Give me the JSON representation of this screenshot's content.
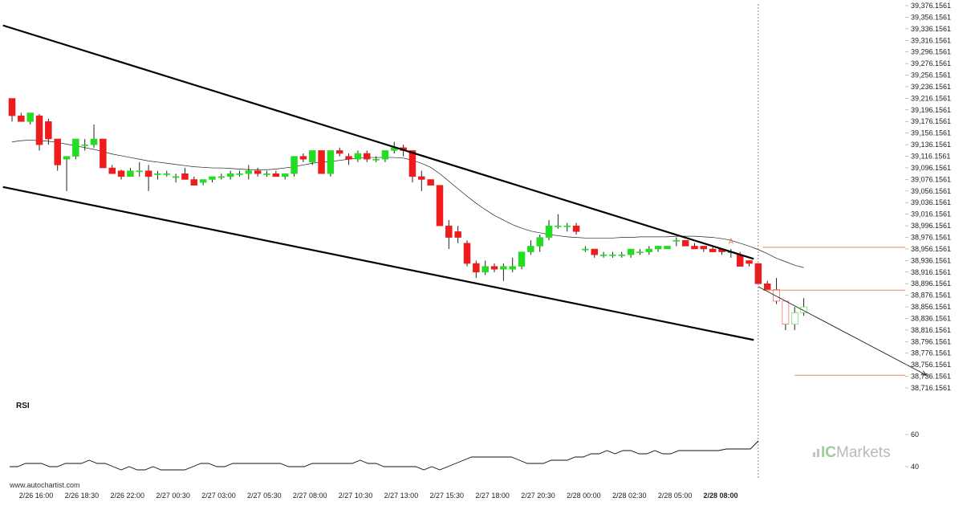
{
  "watermark": "www.autochartist.com",
  "brand": {
    "prefix": "IC",
    "name": "Markets"
  },
  "chart_data": {
    "type": "candlestick",
    "price_axis": {
      "ylim": [
        38716.1561,
        39376.1561
      ],
      "ticks": [
        "39,376.1561",
        "39,356.1561",
        "39,336.1561",
        "39,316.1561",
        "39,296.1561",
        "39,276.1561",
        "39,256.1561",
        "39,236.1561",
        "39,216.1561",
        "39,196.1561",
        "39,176.1561",
        "39,156.1561",
        "39,136.1561",
        "39,116.1561",
        "39,096.1561",
        "39,076.1561",
        "39,056.1561",
        "39,036.1561",
        "39,016.1561",
        "38,996.1561",
        "38,976.1561",
        "38,956.1561",
        "38,936.1561",
        "38,916.1561",
        "38,896.1561",
        "38,876.1561",
        "38,856.1561",
        "38,836.1561",
        "38,816.1561",
        "38,796.1561",
        "38,776.1561",
        "38,756.1561",
        "38,736.1561",
        "38,716.1561"
      ]
    },
    "x_axis": {
      "ticks": [
        "2/26 16:00",
        "2/26 18:30",
        "2/26 22:00",
        "2/27 00:30",
        "2/27 03:00",
        "2/27 05:30",
        "2/27 08:00",
        "2/27 10:30",
        "2/27 13:00",
        "2/27 15:30",
        "2/27 18:00",
        "2/27 20:30",
        "2/28 00:00",
        "2/28 02:30",
        "2/28 05:00",
        "2/28 08:00"
      ],
      "highlighted": "2/28 08:00"
    },
    "candles": [
      [
        39216,
        39216,
        39176,
        39186
      ],
      [
        39186,
        39191,
        39176,
        39176
      ],
      [
        39176,
        39191,
        39171,
        39191
      ],
      [
        39186,
        39189,
        39126,
        39136
      ],
      [
        39176,
        39181,
        39136,
        39146
      ],
      [
        39146,
        39146,
        39091,
        39101
      ],
      [
        39111,
        39116,
        39056,
        39116
      ],
      [
        39116,
        39146,
        39111,
        39146
      ],
      [
        39136,
        39146,
        39126,
        39136
      ],
      [
        39136,
        39171,
        39131,
        39146
      ],
      [
        39146,
        39146,
        39096,
        39096
      ],
      [
        39096,
        39101,
        39086,
        39086
      ],
      [
        39091,
        39093,
        39076,
        39081
      ],
      [
        39081,
        39096,
        39081,
        39091
      ],
      [
        39091,
        39106,
        39081,
        39091
      ],
      [
        39091,
        39101,
        39056,
        39081
      ],
      [
        39086,
        39091,
        39076,
        39086
      ],
      [
        39086,
        39091,
        39081,
        39086
      ],
      [
        39081,
        39086,
        39071,
        39081
      ],
      [
        39086,
        39096,
        39076,
        39076
      ],
      [
        39076,
        39081,
        39066,
        39066
      ],
      [
        39071,
        39076,
        39066,
        39076
      ],
      [
        39076,
        39081,
        39071,
        39081
      ],
      [
        39081,
        39086,
        39076,
        39081
      ],
      [
        39081,
        39091,
        39076,
        39086
      ],
      [
        39086,
        39091,
        39081,
        39086
      ],
      [
        39086,
        39101,
        39076,
        39091
      ],
      [
        39091,
        39096,
        39081,
        39086
      ],
      [
        39086,
        39091,
        39081,
        39086
      ],
      [
        39086,
        39091,
        39081,
        39081
      ],
      [
        39081,
        39086,
        39076,
        39086
      ],
      [
        39086,
        39116,
        39081,
        39116
      ],
      [
        39116,
        39121,
        39106,
        39111
      ],
      [
        39106,
        39126,
        39101,
        39126
      ],
      [
        39126,
        39126,
        39086,
        39086
      ],
      [
        39086,
        39126,
        39081,
        39126
      ],
      [
        39126,
        39131,
        39116,
        39121
      ],
      [
        39116,
        39121,
        39101,
        39111
      ],
      [
        39111,
        39126,
        39106,
        39121
      ],
      [
        39121,
        39126,
        39106,
        39111
      ],
      [
        39111,
        39116,
        39106,
        39111
      ],
      [
        39111,
        39126,
        39106,
        39126
      ],
      [
        39126,
        39141,
        39121,
        39131
      ],
      [
        39131,
        39136,
        39116,
        39126
      ],
      [
        39126,
        39126,
        39071,
        39081
      ],
      [
        39081,
        39091,
        39056,
        39076
      ],
      [
        39076,
        39076,
        39066,
        39066
      ],
      [
        39066,
        39066,
        38996,
        38996
      ],
      [
        38996,
        39006,
        38956,
        38976
      ],
      [
        38986,
        38996,
        38966,
        38976
      ],
      [
        38966,
        38971,
        38926,
        38931
      ],
      [
        38931,
        38936,
        38906,
        38916
      ],
      [
        38916,
        38936,
        38911,
        38926
      ],
      [
        38926,
        38931,
        38916,
        38921
      ],
      [
        38921,
        38931,
        38901,
        38926
      ],
      [
        38921,
        38941,
        38916,
        38926
      ],
      [
        38926,
        38951,
        38921,
        38951
      ],
      [
        38951,
        38971,
        38946,
        38961
      ],
      [
        38961,
        38981,
        38951,
        38976
      ],
      [
        38976,
        39006,
        38971,
        38996
      ],
      [
        38996,
        39016,
        38991,
        38996
      ],
      [
        38996,
        39001,
        38986,
        38996
      ],
      [
        38996,
        39001,
        38981,
        38986
      ],
      [
        38956,
        38961,
        38951,
        38956
      ],
      [
        38956,
        38956,
        38941,
        38946
      ],
      [
        38946,
        38951,
        38941,
        38946
      ],
      [
        38946,
        38951,
        38941,
        38946
      ],
      [
        38946,
        38951,
        38941,
        38946
      ],
      [
        38946,
        38956,
        38941,
        38956
      ],
      [
        38951,
        38956,
        38946,
        38951
      ],
      [
        38951,
        38961,
        38946,
        38956
      ],
      [
        38956,
        38961,
        38951,
        38961
      ],
      [
        38956,
        38961,
        38956,
        38961
      ],
      [
        38971,
        38976,
        38961,
        38971
      ],
      [
        38971,
        38971,
        38961,
        38961
      ],
      [
        38961,
        38966,
        38956,
        38956
      ],
      [
        38961,
        38961,
        38951,
        38956
      ],
      [
        38956,
        38961,
        38951,
        38951
      ],
      [
        38956,
        38956,
        38946,
        38951
      ],
      [
        38951,
        38956,
        38941,
        38951
      ],
      [
        38946,
        38951,
        38926,
        38926
      ],
      [
        38936,
        38936,
        38926,
        38931
      ],
      [
        38931,
        38931,
        38896,
        38896
      ],
      [
        38896,
        38901,
        38886,
        38886
      ],
      [
        38886,
        38906,
        38861,
        38866
      ],
      [
        38866,
        38866,
        38816,
        38826
      ],
      [
        38826,
        38856,
        38816,
        38846
      ],
      [
        38846,
        38871,
        38841,
        38856
      ]
    ],
    "moving_average": [
      39141,
      39143,
      39144,
      39143,
      39142,
      39140,
      39137,
      39134,
      39131,
      39128,
      39124,
      39120,
      39117,
      39114,
      39111,
      39108,
      39106,
      39104,
      39102,
      39100,
      39098,
      39097,
      39096,
      39096,
      39095,
      39094,
      39093,
      39093,
      39093,
      39094,
      39096,
      39098,
      39101,
      39104,
      39106,
      39107,
      39109,
      39111,
      39113,
      39114,
      39114,
      39114,
      39114,
      39113,
      39109,
      39104,
      39097,
      39086,
      39073,
      39060,
      39047,
      39035,
      39024,
      39014,
      39006,
      38998,
      38992,
      38987,
      38984,
      38981,
      38979,
      38977,
      38976,
      38975,
      38975,
      38975,
      38975,
      38976,
      38976,
      38977,
      38977,
      38977,
      38977,
      38978,
      38978,
      38978,
      38977,
      38976,
      38974,
      38971,
      38966,
      38961,
      38955,
      38948,
      38940,
      38934,
      38928,
      38924
    ],
    "channel": {
      "upper_start": {
        "candle": -1,
        "price": 39342
      },
      "upper_end": {
        "candle": 81.5,
        "price": 38939
      },
      "lower_start": {
        "candle": -1,
        "price": 39063
      },
      "lower_end": {
        "candle": 81.5,
        "price": 38799
      }
    },
    "projection": {
      "start": {
        "candle": 82,
        "price": 38891
      },
      "end": {
        "candle": 100.5,
        "price": 38738
      }
    },
    "levels": [
      {
        "price": 38959,
        "from_candle": 82.5
      },
      {
        "price": 38885,
        "from_candle": 82.5
      },
      {
        "price": 38738,
        "from_candle": 86
      }
    ],
    "marker": {
      "text": "A",
      "candle": 79,
      "price": 38961
    },
    "vertical_line_candle": 82,
    "rsi": {
      "label": "RSI",
      "ticks": [
        "60",
        "40"
      ],
      "ylim": [
        38,
        68
      ],
      "values": [
        40,
        40,
        42,
        42,
        42,
        40,
        40,
        42,
        42,
        42,
        44,
        42,
        42,
        40,
        38,
        40,
        38,
        38,
        40,
        38,
        38,
        38,
        38,
        40,
        42,
        42,
        40,
        40,
        42,
        42,
        42,
        42,
        42,
        42,
        42,
        40,
        40,
        40,
        42,
        42,
        42,
        42,
        42,
        42,
        44,
        42,
        42,
        40,
        40,
        40,
        40,
        40,
        38,
        40,
        38,
        40,
        42,
        44,
        46,
        46,
        46,
        46,
        46,
        46,
        44,
        42,
        42,
        42,
        44,
        44,
        44,
        46,
        46,
        48,
        48,
        50,
        48,
        50,
        50,
        48,
        48,
        50,
        48,
        48,
        50,
        50,
        50,
        50,
        50,
        50,
        51,
        51,
        51,
        51,
        56
      ]
    }
  }
}
